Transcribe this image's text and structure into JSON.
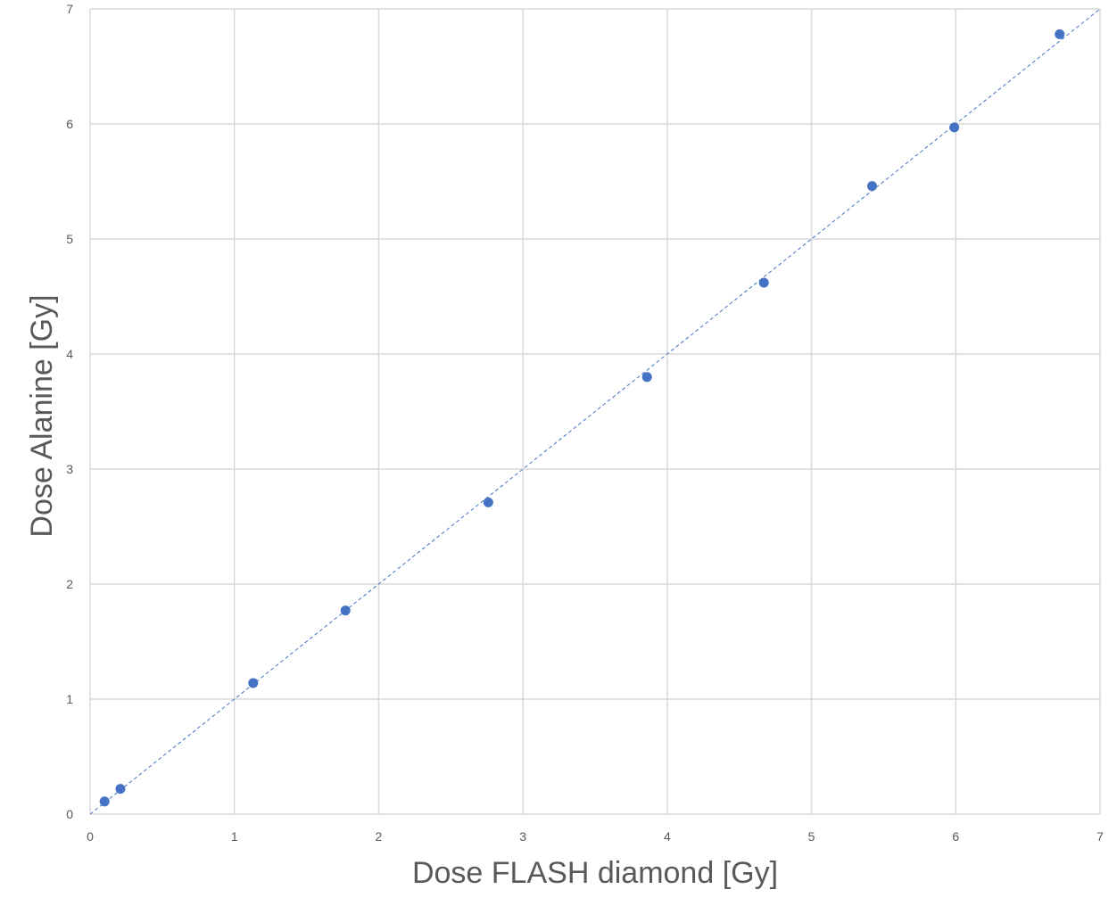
{
  "chart_data": {
    "type": "scatter",
    "title": "",
    "xlabel": "Dose FLASH diamond [Gy]",
    "ylabel": "Dose Alanine [Gy]",
    "xlim": [
      0,
      7
    ],
    "ylim": [
      0,
      7
    ],
    "x_ticks": [
      "0",
      "1",
      "2",
      "3",
      "4",
      "5",
      "6",
      "7"
    ],
    "y_ticks": [
      "0",
      "1",
      "2",
      "3",
      "4",
      "5",
      "6",
      "7"
    ],
    "grid": true,
    "legend": "none",
    "series": [
      {
        "color": "#4472c4",
        "x": [
          0.1,
          0.21,
          1.13,
          1.77,
          2.76,
          3.86,
          4.67,
          5.42,
          5.99,
          6.72
        ],
        "y": [
          0.11,
          0.22,
          1.14,
          1.77,
          2.71,
          3.8,
          4.62,
          5.46,
          5.97,
          6.78
        ]
      }
    ],
    "trendline": {
      "style": "dashed",
      "color": "#4472c4",
      "x": [
        0,
        7
      ],
      "y": [
        0,
        7
      ]
    }
  }
}
